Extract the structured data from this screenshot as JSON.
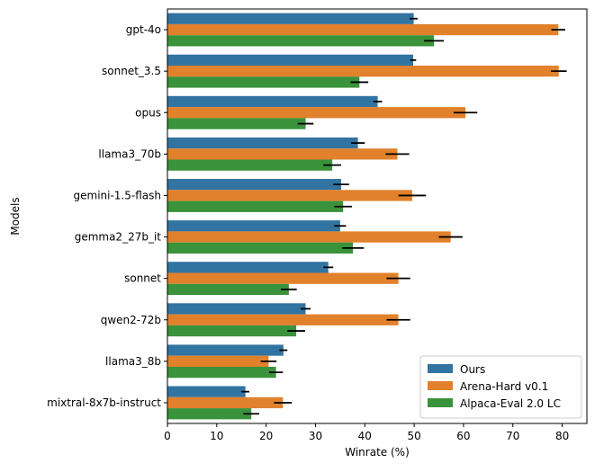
{
  "chart_data": {
    "type": "bar",
    "orientation": "horizontal",
    "title": "",
    "xlabel": "Winrate (%)",
    "ylabel": "Models",
    "xlim": [
      0,
      85
    ],
    "xticks": [
      0,
      10,
      20,
      30,
      40,
      50,
      60,
      70,
      80
    ],
    "grid": false,
    "legend_position": "bottom-right",
    "categories": [
      "gpt-4o",
      "sonnet_3.5",
      "opus",
      "llama3_70b",
      "gemini-1.5-flash",
      "gemma2_27b_it",
      "sonnet",
      "qwen2-72b",
      "llama3_8b",
      "mixtral-8x7b-instruct"
    ],
    "series": [
      {
        "name": "Ours",
        "color": "#3274a1",
        "values": [
          49.9,
          49.8,
          42.6,
          38.6,
          35.2,
          35.0,
          32.6,
          28.0,
          23.5,
          15.8
        ],
        "errors": [
          0.8,
          0.6,
          0.9,
          1.4,
          1.6,
          1.2,
          1.0,
          1.0,
          0.8,
          0.8
        ]
      },
      {
        "name": "Arena-Hard v0.1",
        "color": "#e1812c",
        "values": [
          79.2,
          79.3,
          60.4,
          46.6,
          49.6,
          57.4,
          46.8,
          46.8,
          20.5,
          23.4
        ],
        "errors": [
          1.4,
          1.6,
          2.4,
          2.4,
          2.8,
          2.4,
          2.4,
          2.4,
          1.6,
          1.8
        ]
      },
      {
        "name": "Alpaca-Eval 2.0 LC",
        "color": "#3a923a",
        "values": [
          54.0,
          38.9,
          28.0,
          33.4,
          35.6,
          37.6,
          24.6,
          26.1,
          22.0,
          17.0
        ],
        "errors": [
          2.0,
          1.8,
          1.6,
          1.8,
          1.8,
          2.2,
          1.6,
          1.8,
          1.4,
          1.6
        ]
      }
    ]
  }
}
